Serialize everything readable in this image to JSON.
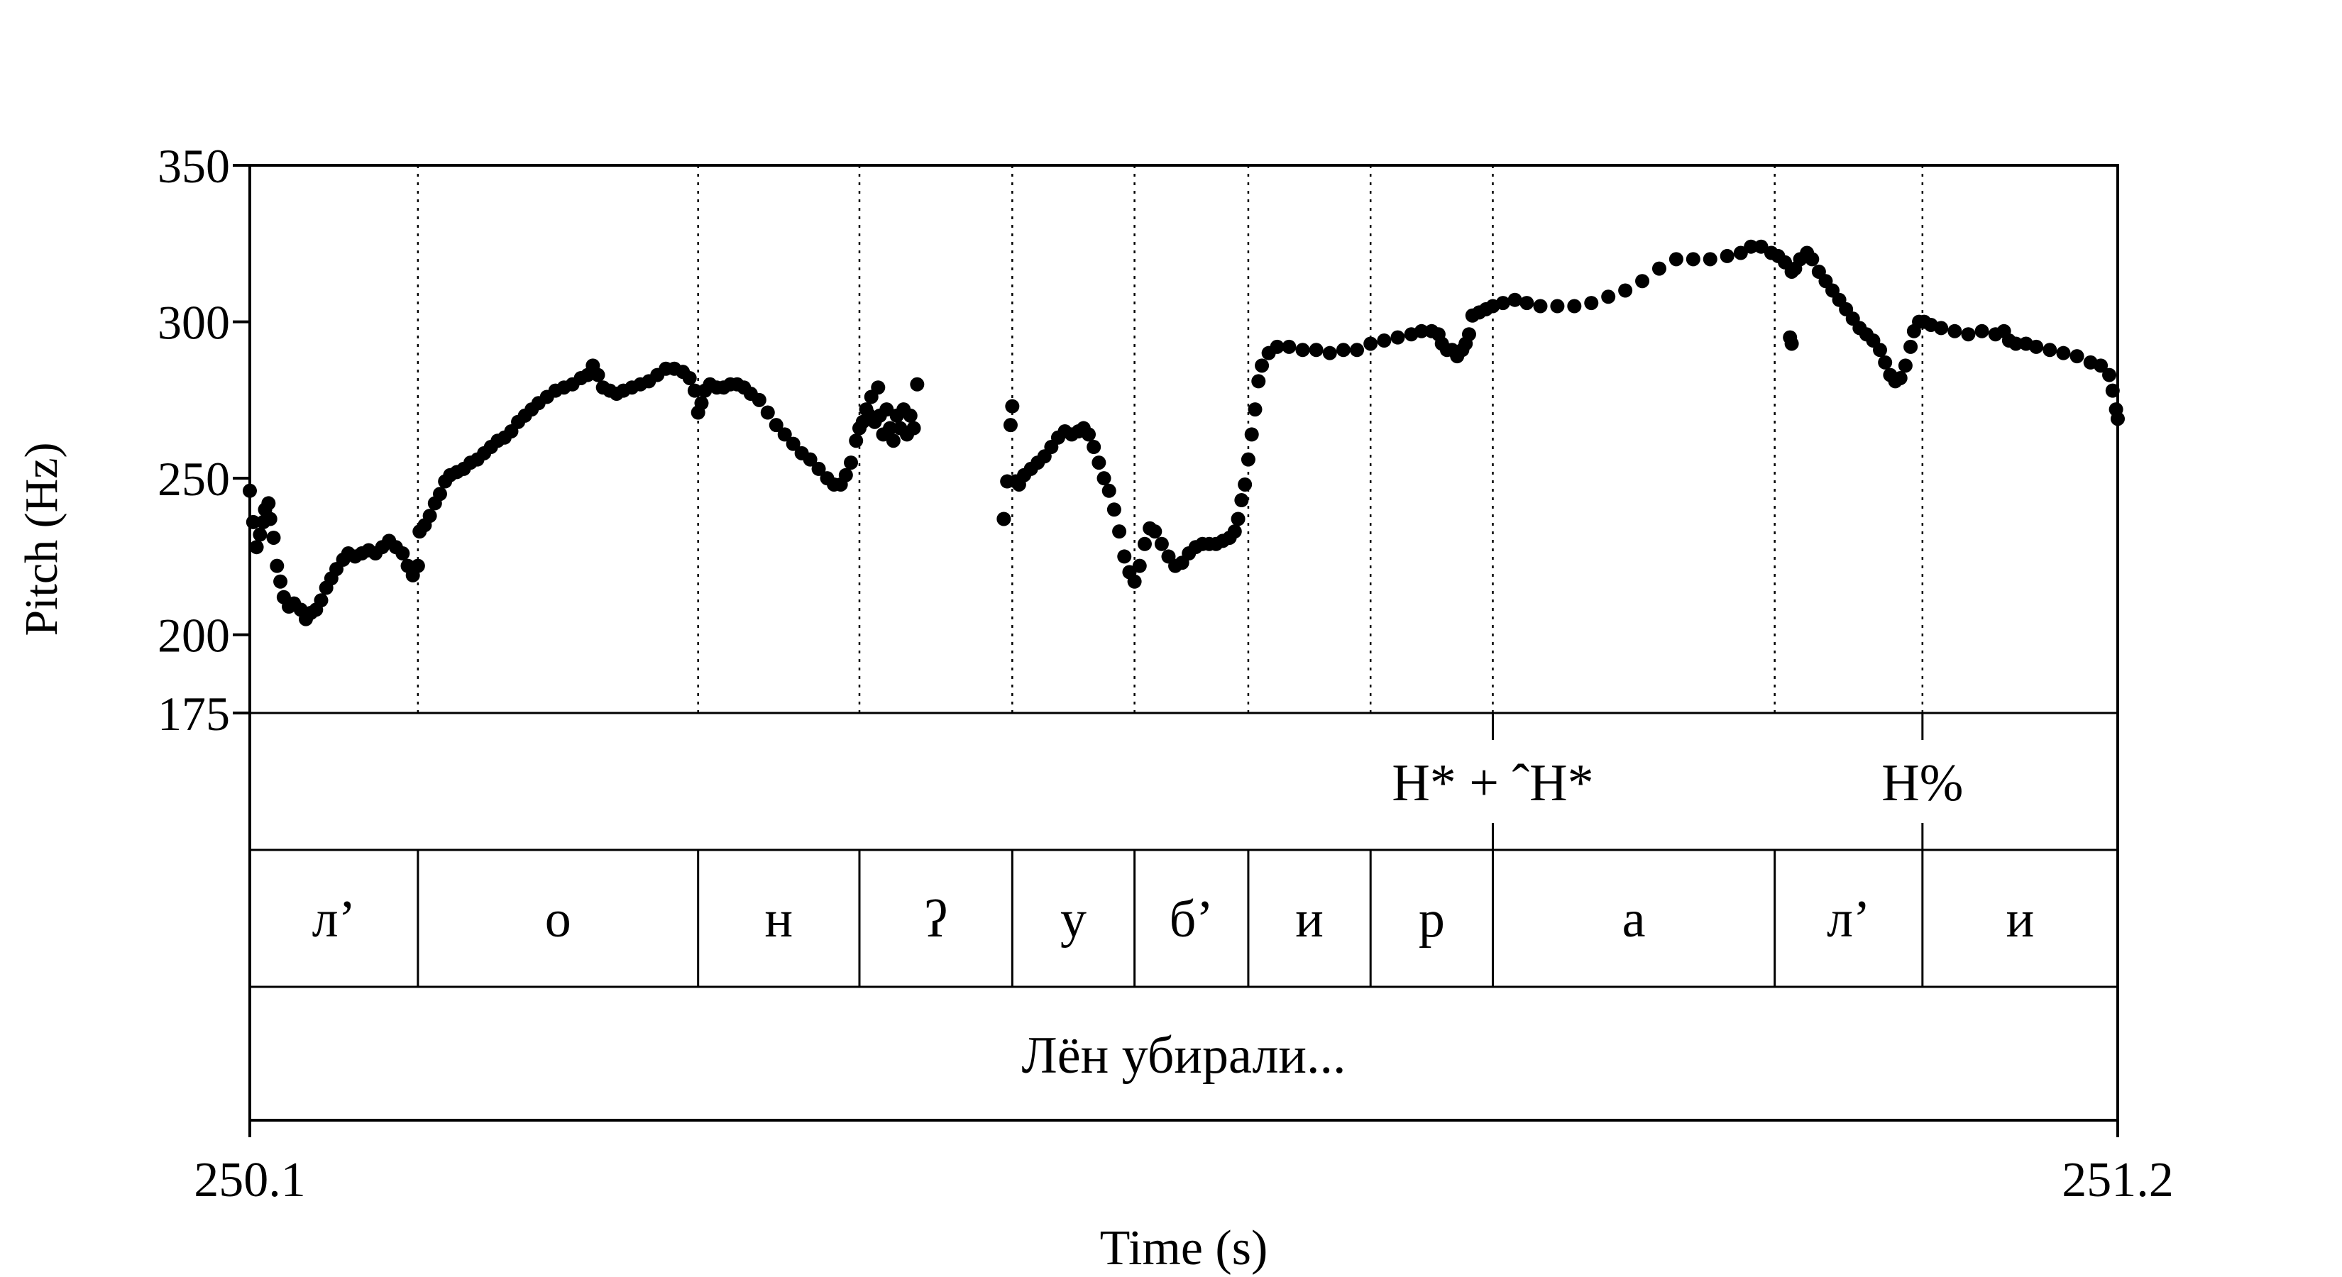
{
  "chart_data": {
    "type": "scatter",
    "xlabel": "Time (s)",
    "ylabel": "Pitch (Hz)",
    "xlim": [
      250.1,
      251.2
    ],
    "ylim": [
      175,
      350
    ],
    "x_ticks": [
      "250.1",
      "251.2"
    ],
    "y_ticks": [
      {
        "value": 350,
        "label": "350"
      },
      {
        "value": 300,
        "label": "300"
      },
      {
        "value": 250,
        "label": "250"
      },
      {
        "value": 200,
        "label": "200"
      },
      {
        "value": 175,
        "label": "175"
      }
    ],
    "dotted_boundaries": [
      250.199,
      250.364,
      250.459,
      250.549,
      250.621,
      250.688,
      250.76,
      250.832,
      250.998,
      251.085
    ],
    "pitch_points": [
      [
        250.1,
        246
      ],
      [
        250.102,
        236
      ],
      [
        250.104,
        228
      ],
      [
        250.106,
        232
      ],
      [
        250.108,
        236
      ],
      [
        250.109,
        240
      ],
      [
        250.111,
        242
      ],
      [
        250.112,
        237
      ],
      [
        250.114,
        231
      ],
      [
        250.116,
        222
      ],
      [
        250.118,
        217
      ],
      [
        250.12,
        212
      ],
      [
        250.123,
        209
      ],
      [
        250.126,
        210
      ],
      [
        250.13,
        208
      ],
      [
        250.133,
        205
      ],
      [
        250.136,
        207
      ],
      [
        250.139,
        208
      ],
      [
        250.142,
        211
      ],
      [
        250.145,
        215
      ],
      [
        250.148,
        218
      ],
      [
        250.151,
        221
      ],
      [
        250.155,
        224
      ],
      [
        250.158,
        226
      ],
      [
        250.162,
        225
      ],
      [
        250.166,
        226
      ],
      [
        250.17,
        227
      ],
      [
        250.174,
        226
      ],
      [
        250.178,
        228
      ],
      [
        250.182,
        230
      ],
      [
        250.186,
        228
      ],
      [
        250.19,
        226
      ],
      [
        250.193,
        222
      ],
      [
        250.196,
        219
      ],
      [
        250.199,
        222
      ],
      [
        250.2,
        233
      ],
      [
        250.203,
        235
      ],
      [
        250.206,
        238
      ],
      [
        250.209,
        242
      ],
      [
        250.212,
        245
      ],
      [
        250.215,
        249
      ],
      [
        250.218,
        251
      ],
      [
        250.222,
        252
      ],
      [
        250.226,
        253
      ],
      [
        250.23,
        255
      ],
      [
        250.234,
        256
      ],
      [
        250.238,
        258
      ],
      [
        250.242,
        260
      ],
      [
        250.246,
        262
      ],
      [
        250.25,
        263
      ],
      [
        250.254,
        265
      ],
      [
        250.258,
        268
      ],
      [
        250.262,
        270
      ],
      [
        250.266,
        272
      ],
      [
        250.27,
        274
      ],
      [
        250.275,
        276
      ],
      [
        250.28,
        278
      ],
      [
        250.285,
        279
      ],
      [
        250.29,
        280
      ],
      [
        250.295,
        282
      ],
      [
        250.299,
        283
      ],
      [
        250.302,
        286
      ],
      [
        250.305,
        283
      ],
      [
        250.308,
        279
      ],
      [
        250.312,
        278
      ],
      [
        250.316,
        277
      ],
      [
        250.32,
        278
      ],
      [
        250.325,
        279
      ],
      [
        250.33,
        280
      ],
      [
        250.335,
        281
      ],
      [
        250.34,
        283
      ],
      [
        250.345,
        285
      ],
      [
        250.35,
        285
      ],
      [
        250.355,
        284
      ],
      [
        250.359,
        282
      ],
      [
        250.362,
        278
      ],
      [
        250.364,
        271
      ],
      [
        250.366,
        274
      ],
      [
        250.368,
        278
      ],
      [
        250.371,
        280
      ],
      [
        250.375,
        279
      ],
      [
        250.379,
        279
      ],
      [
        250.383,
        280
      ],
      [
        250.387,
        280
      ],
      [
        250.391,
        279
      ],
      [
        250.395,
        277
      ],
      [
        250.4,
        275
      ],
      [
        250.405,
        271
      ],
      [
        250.41,
        267
      ],
      [
        250.415,
        264
      ],
      [
        250.42,
        261
      ],
      [
        250.425,
        258
      ],
      [
        250.43,
        256
      ],
      [
        250.435,
        253
      ],
      [
        250.44,
        250
      ],
      [
        250.444,
        248
      ],
      [
        250.448,
        248
      ],
      [
        250.451,
        251
      ],
      [
        250.454,
        255
      ],
      [
        250.457,
        262
      ],
      [
        250.459,
        266
      ],
      [
        250.461,
        268
      ],
      [
        250.463,
        272
      ],
      [
        250.465,
        270
      ],
      [
        250.466,
        276
      ],
      [
        250.468,
        268
      ],
      [
        250.47,
        279
      ],
      [
        250.471,
        270
      ],
      [
        250.473,
        264
      ],
      [
        250.475,
        272
      ],
      [
        250.477,
        266
      ],
      [
        250.479,
        262
      ],
      [
        250.481,
        270
      ],
      [
        250.483,
        266
      ],
      [
        250.485,
        272
      ],
      [
        250.487,
        264
      ],
      [
        250.489,
        270
      ],
      [
        250.491,
        266
      ],
      [
        250.493,
        280
      ],
      [
        250.544,
        237
      ],
      [
        250.546,
        249
      ],
      [
        250.548,
        267
      ],
      [
        250.549,
        273
      ],
      [
        250.551,
        249
      ],
      [
        250.553,
        248
      ],
      [
        250.556,
        251
      ],
      [
        250.56,
        253
      ],
      [
        250.564,
        255
      ],
      [
        250.568,
        257
      ],
      [
        250.572,
        260
      ],
      [
        250.576,
        263
      ],
      [
        250.58,
        265
      ],
      [
        250.584,
        264
      ],
      [
        250.588,
        265
      ],
      [
        250.591,
        266
      ],
      [
        250.594,
        264
      ],
      [
        250.597,
        260
      ],
      [
        250.6,
        255
      ],
      [
        250.603,
        250
      ],
      [
        250.606,
        246
      ],
      [
        250.609,
        240
      ],
      [
        250.612,
        233
      ],
      [
        250.615,
        225
      ],
      [
        250.618,
        220
      ],
      [
        250.621,
        217
      ],
      [
        250.624,
        222
      ],
      [
        250.627,
        229
      ],
      [
        250.63,
        234
      ],
      [
        250.633,
        233
      ],
      [
        250.637,
        229
      ],
      [
        250.641,
        225
      ],
      [
        250.645,
        222
      ],
      [
        250.649,
        223
      ],
      [
        250.653,
        226
      ],
      [
        250.657,
        228
      ],
      [
        250.661,
        229
      ],
      [
        250.665,
        229
      ],
      [
        250.669,
        229
      ],
      [
        250.673,
        230
      ],
      [
        250.677,
        231
      ],
      [
        250.68,
        233
      ],
      [
        250.682,
        237
      ],
      [
        250.684,
        243
      ],
      [
        250.686,
        248
      ],
      [
        250.688,
        256
      ],
      [
        250.69,
        264
      ],
      [
        250.692,
        272
      ],
      [
        250.694,
        281
      ],
      [
        250.696,
        286
      ],
      [
        250.7,
        290
      ],
      [
        250.705,
        292
      ],
      [
        250.712,
        292
      ],
      [
        250.72,
        291
      ],
      [
        250.728,
        291
      ],
      [
        250.736,
        290
      ],
      [
        250.744,
        291
      ],
      [
        250.752,
        291
      ],
      [
        250.76,
        293
      ],
      [
        250.768,
        294
      ],
      [
        250.776,
        295
      ],
      [
        250.784,
        296
      ],
      [
        250.79,
        297
      ],
      [
        250.796,
        297
      ],
      [
        250.8,
        296
      ],
      [
        250.802,
        293
      ],
      [
        250.805,
        291
      ],
      [
        250.808,
        291
      ],
      [
        250.811,
        289
      ],
      [
        250.814,
        291
      ],
      [
        250.816,
        293
      ],
      [
        250.818,
        296
      ],
      [
        250.82,
        302
      ],
      [
        250.824,
        303
      ],
      [
        250.828,
        304
      ],
      [
        250.832,
        305
      ],
      [
        250.838,
        306
      ],
      [
        250.845,
        307
      ],
      [
        250.852,
        306
      ],
      [
        250.86,
        305
      ],
      [
        250.87,
        305
      ],
      [
        250.88,
        305
      ],
      [
        250.89,
        306
      ],
      [
        250.9,
        308
      ],
      [
        250.91,
        310
      ],
      [
        250.92,
        313
      ],
      [
        250.93,
        317
      ],
      [
        250.94,
        320
      ],
      [
        250.95,
        320
      ],
      [
        250.96,
        320
      ],
      [
        250.97,
        321
      ],
      [
        250.978,
        322
      ],
      [
        250.984,
        324
      ],
      [
        250.99,
        324
      ],
      [
        250.996,
        322
      ],
      [
        251.0,
        321
      ],
      [
        251.004,
        319
      ],
      [
        251.008,
        316
      ],
      [
        251.01,
        317
      ],
      [
        251.013,
        320
      ],
      [
        251.017,
        322
      ],
      [
        251.02,
        320
      ],
      [
        251.024,
        316
      ],
      [
        251.028,
        313
      ],
      [
        251.032,
        310
      ],
      [
        251.036,
        307
      ],
      [
        251.04,
        304
      ],
      [
        251.044,
        301
      ],
      [
        251.048,
        298
      ],
      [
        251.052,
        296
      ],
      [
        251.056,
        294
      ],
      [
        251.06,
        291
      ],
      [
        251.063,
        287
      ],
      [
        251.066,
        283
      ],
      [
        251.069,
        281
      ],
      [
        251.072,
        282
      ],
      [
        251.075,
        286
      ],
      [
        251.078,
        292
      ],
      [
        251.08,
        297
      ],
      [
        251.083,
        300
      ],
      [
        251.086,
        300
      ],
      [
        251.09,
        299
      ],
      [
        251.096,
        298
      ],
      [
        251.104,
        297
      ],
      [
        251.112,
        296
      ],
      [
        251.12,
        297
      ],
      [
        251.128,
        296
      ],
      [
        251.133,
        297
      ],
      [
        251.136,
        294
      ],
      [
        251.14,
        293
      ],
      [
        251.146,
        293
      ],
      [
        251.152,
        292
      ],
      [
        251.16,
        291
      ],
      [
        251.168,
        290
      ],
      [
        251.176,
        289
      ],
      [
        251.184,
        287
      ],
      [
        251.19,
        286
      ],
      [
        251.195,
        283
      ],
      [
        251.197,
        278
      ],
      [
        251.199,
        272
      ],
      [
        251.2,
        269
      ],
      [
        251.007,
        295
      ],
      [
        251.008,
        293
      ]
    ]
  },
  "tone_tier": [
    {
      "label": "H* + ˆH*",
      "x": 250.832
    },
    {
      "label": "H%",
      "x": 251.085
    }
  ],
  "segment_tier": {
    "boundaries": [
      250.1,
      250.199,
      250.364,
      250.459,
      250.549,
      250.621,
      250.688,
      250.76,
      250.832,
      250.998,
      251.085,
      251.2
    ],
    "labels": [
      "л’",
      "о",
      "н",
      "ʔ",
      "у",
      "б’",
      "и",
      "р",
      "а",
      "л’",
      "и"
    ]
  },
  "word_tier": {
    "text": "Лён убирали..."
  }
}
